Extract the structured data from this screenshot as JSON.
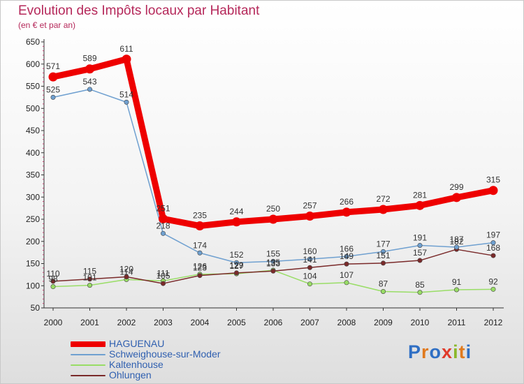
{
  "title": "Evolution des Impôts locaux par Habitant",
  "subtitle": "(en € et par an)",
  "logo": {
    "text": "Proxiti",
    "letter_colors": [
      "#2f6fc4",
      "#e07a1e",
      "#2f6fc4",
      "#e03a2a",
      "#8ab82a",
      "#e07a1e",
      "#2f6fc4"
    ]
  },
  "chart_data": {
    "type": "line",
    "x": [
      "2000",
      "2001",
      "2002",
      "2003",
      "2004",
      "2005",
      "2006",
      "2007",
      "2008",
      "2009",
      "2010",
      "2011",
      "2012"
    ],
    "ylim": [
      50,
      650
    ],
    "yticks": [
      50,
      100,
      150,
      200,
      250,
      300,
      350,
      400,
      450,
      500,
      550,
      600,
      650
    ],
    "grid": false,
    "legend_position": "bottom-left",
    "series": [
      {
        "name": "HAGUENAU",
        "color": "#ee0000",
        "values": [
          571,
          589,
          611,
          251,
          235,
          244,
          250,
          257,
          266,
          272,
          281,
          299,
          315
        ]
      },
      {
        "name": "Schweighouse-sur-Moder",
        "color": "#6fa0d0",
        "values": [
          525,
          543,
          514,
          218,
          174,
          152,
          155,
          160,
          166,
          177,
          191,
          187,
          197
        ]
      },
      {
        "name": "Kaltenhouse",
        "color": "#99dd66",
        "values": [
          98,
          101,
          114,
          111,
          126,
          127,
          135,
          104,
          107,
          87,
          85,
          91,
          92
        ]
      },
      {
        "name": "Ohlungen",
        "color": "#7a2a2a",
        "values": [
          110,
          115,
          120,
          105,
          123,
          129,
          133,
          141,
          149,
          151,
          157,
          182,
          168
        ]
      }
    ]
  }
}
